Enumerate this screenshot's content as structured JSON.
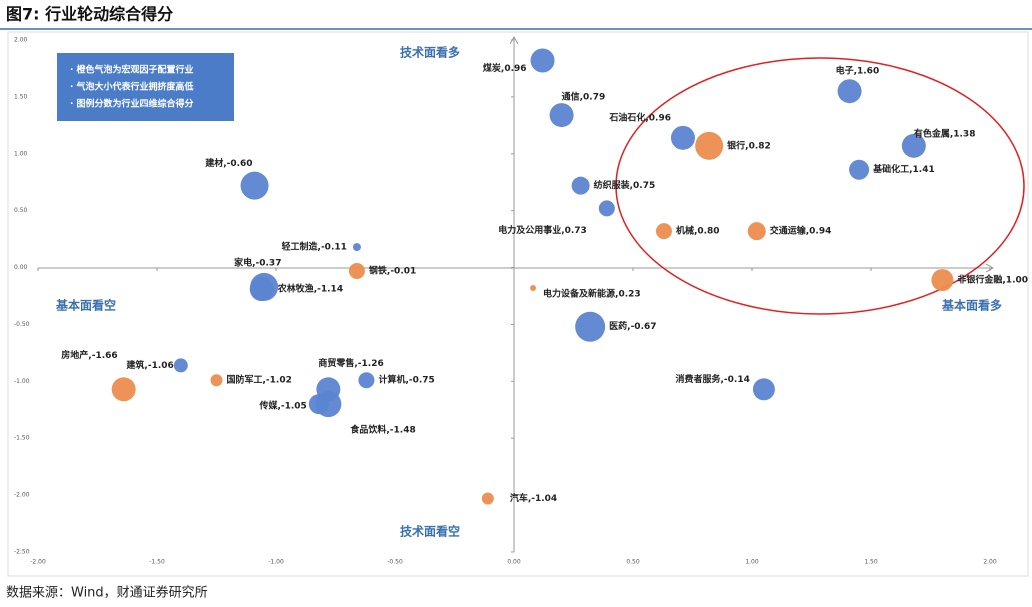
{
  "chart_data": {
    "type": "scatter",
    "title": "图7: 行业轮动综合得分",
    "notes": [
      "· 橙色气泡为宏观因子配置行业",
      "· 气泡大小代表行业拥挤度高低",
      "· 图例分数为行业四维综合得分"
    ],
    "quadrants": {
      "top": "技术面看多",
      "bottom": "技术面看空",
      "left": "基本面看空",
      "right": "基本面看多"
    },
    "source": "数据来源：Wind，财通证券研究所",
    "labels": [
      "煤炭,0.96",
      "通信,0.79",
      "石油石化,0.96",
      "银行,0.82",
      "电子,1.60",
      "有色金属,1.38",
      "基础化工,1.41",
      "纺织服装,0.75",
      "电力及公用事业,0.73",
      "机械,0.80",
      "交通运输,0.94",
      "非银行金融,1.00",
      "建材,-0.60",
      "轻工制造,-0.11",
      "钢铁,-0.01",
      "家电,-0.37",
      "农林牧渔,-1.14",
      "电力设备及新能源,0.23",
      "医药,-0.67",
      "房地产,-1.66",
      "建筑,-1.06",
      "国防军工,-1.02",
      "商贸零售,-1.26",
      "计算机,-0.75",
      "传媒,-1.05",
      "食品饮料,-1.48",
      "消费者服务,-0.14",
      "汽车,-1.04"
    ],
    "x": [
      0.12,
      0.2,
      0.71,
      0.82,
      1.41,
      1.68,
      1.45,
      0.28,
      0.39,
      0.63,
      1.02,
      1.8,
      -1.09,
      -0.66,
      -0.66,
      -1.05,
      -1.06,
      0.08,
      0.32,
      -1.64,
      -1.4,
      -1.25,
      -0.78,
      -0.62,
      -0.82,
      -0.78,
      1.05,
      -0.11
    ],
    "values": [
      1.82,
      1.34,
      1.14,
      1.07,
      1.55,
      1.07,
      0.86,
      0.72,
      0.52,
      0.32,
      0.32,
      -0.11,
      0.72,
      0.18,
      -0.03,
      -0.17,
      -0.19,
      -0.18,
      -0.52,
      -1.07,
      -0.86,
      -0.99,
      -1.07,
      -0.99,
      -1.2,
      -1.2,
      -1.07,
      -2.03
    ],
    "sizes": [
      12,
      12,
      12,
      14,
      12,
      12,
      10,
      9,
      8,
      8,
      9,
      11,
      14,
      4,
      8,
      14,
      12,
      3,
      15,
      12,
      7,
      6,
      12,
      8,
      10,
      13,
      11,
      6
    ],
    "colors": [
      "#5b84d1",
      "#5b84d1",
      "#5b84d1",
      "#ed8d4f",
      "#5b84d1",
      "#5b84d1",
      "#5b84d1",
      "#5b84d1",
      "#5b84d1",
      "#ed8d4f",
      "#ed8d4f",
      "#ed8d4f",
      "#5b84d1",
      "#5b84d1",
      "#ed8d4f",
      "#5b84d1",
      "#5b84d1",
      "#ed8d4f",
      "#5b84d1",
      "#ed8d4f",
      "#5b84d1",
      "#ed8d4f",
      "#5b84d1",
      "#5b84d1",
      "#5b84d1",
      "#5b84d1",
      "#5b84d1",
      "#ed8d4f"
    ],
    "xlim": [
      -2,
      2
    ],
    "ylim": [
      -2.5,
      2
    ],
    "xticks": [
      {
        "value": -2,
        "label": "-2.00"
      },
      {
        "value": -1.5,
        "label": "-1.50"
      },
      {
        "value": -1,
        "label": "-1.00"
      },
      {
        "value": -0.5,
        "label": "-0.50"
      },
      {
        "value": 0,
        "label": "0.00"
      },
      {
        "value": 0.5,
        "label": "0.50"
      },
      {
        "value": 1,
        "label": "1.00"
      },
      {
        "value": 1.5,
        "label": "1.50"
      },
      {
        "value": 2,
        "label": "2.00"
      }
    ],
    "yticks": [
      {
        "value": 2,
        "label": "2.00"
      },
      {
        "value": 1.5,
        "label": "1.50"
      },
      {
        "value": 1,
        "label": "1.00"
      },
      {
        "value": 0.5,
        "label": "0.50"
      },
      {
        "value": 0,
        "label": "0.00"
      },
      {
        "value": -0.5,
        "label": "-0.50"
      },
      {
        "value": -1,
        "label": "-1.00"
      },
      {
        "value": -1.5,
        "label": "-1.50"
      },
      {
        "value": -2,
        "label": "-2.00"
      },
      {
        "value": -2.5,
        "label": "-2.50"
      }
    ]
  }
}
